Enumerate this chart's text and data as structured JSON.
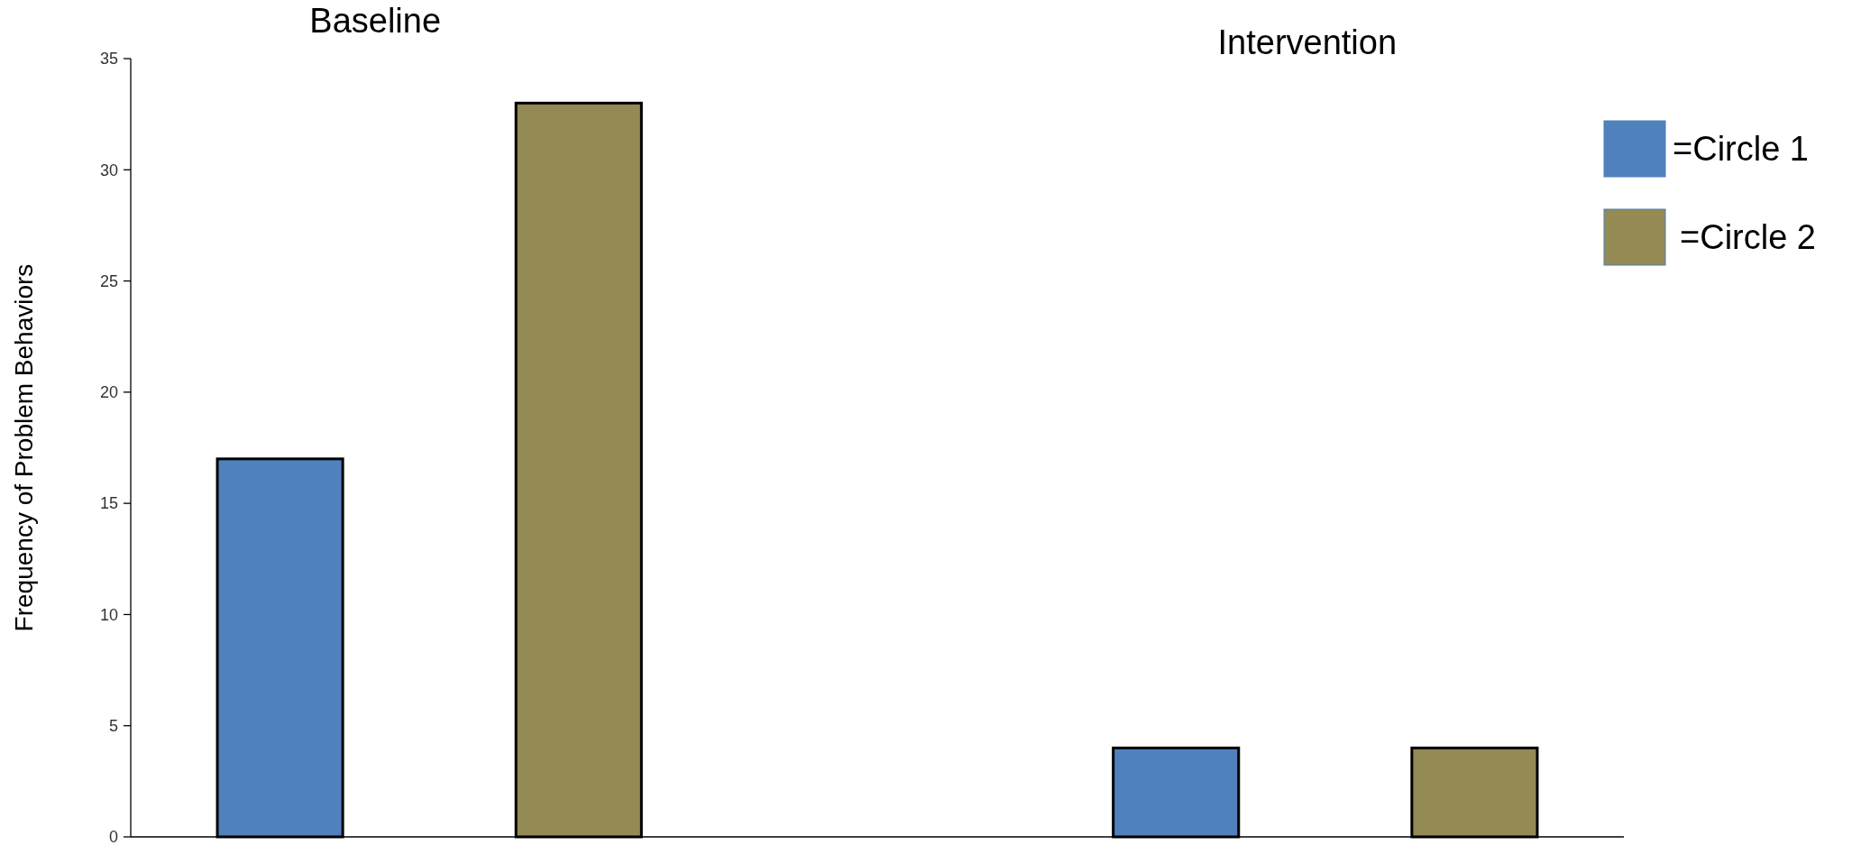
{
  "chart_data": {
    "type": "bar",
    "ylabel": "Frequency of Problem  Behaviors",
    "annotations": [
      "Baseline",
      "Intervention"
    ],
    "categories": [
      null,
      null,
      null,
      null,
      null
    ],
    "series": [
      {
        "name": "=Circle 1",
        "color": "#4f81bd",
        "values": [
          17,
          null,
          null,
          4,
          null
        ]
      },
      {
        "name": "=Circle 2",
        "color": "#948a54",
        "values": [
          null,
          33,
          null,
          null,
          4
        ]
      }
    ],
    "ylim": [
      0,
      35
    ],
    "yticks": [
      0,
      5,
      10,
      15,
      20,
      25,
      30,
      35
    ],
    "grid": false,
    "legend": "right"
  }
}
